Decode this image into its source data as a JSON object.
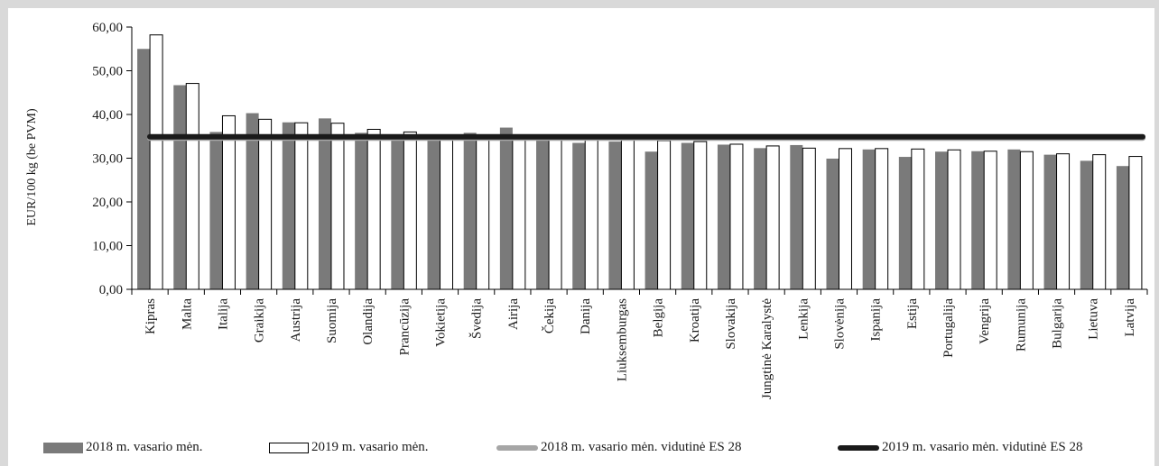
{
  "chart_data": {
    "type": "bar",
    "ylabel": "EUR/100 kg (be PVM)",
    "ylim": [
      0,
      60
    ],
    "ytick_labels": [
      "0,00",
      "10,00",
      "20,00",
      "30,00",
      "40,00",
      "50,00",
      "60,00"
    ],
    "yticks": [
      0,
      10,
      20,
      30,
      40,
      50,
      60
    ],
    "categories": [
      "Kipras",
      "Malta",
      "Italija",
      "Graikija",
      "Austrija",
      "Suomija",
      "Olandija",
      "Prancūzija",
      "Vokietija",
      "Švedija",
      "Airija",
      "Čekija",
      "Danija",
      "Liuksemburgas",
      "Belgija",
      "Kroatija",
      "Slovakija",
      "Jungtinė Karalystė",
      "Lenkija",
      "Slovėnija",
      "Ispanija",
      "Estija",
      "Portugalija",
      "Vengrija",
      "Rumunija",
      "Bulgarija",
      "Lietuva",
      "Latvija"
    ],
    "series": [
      {
        "name": "2018 m. vasario mėn.",
        "color": "#7a7a7a",
        "values": [
          55.0,
          46.7,
          36.0,
          40.3,
          38.2,
          39.1,
          35.8,
          35.4,
          34.5,
          35.8,
          37.0,
          34.6,
          33.5,
          33.8,
          31.5,
          33.5,
          33.1,
          32.3,
          33.0,
          29.9,
          32.0,
          30.3,
          31.5,
          31.6,
          32.0,
          30.8,
          29.4,
          28.2
        ]
      },
      {
        "name": "2019 m. vasario mėn.",
        "color": "#ffffff",
        "values": [
          58.2,
          47.1,
          39.7,
          38.9,
          38.1,
          38.0,
          36.6,
          36.0,
          35.3,
          35.2,
          35.0,
          34.9,
          34.4,
          34.2,
          34.0,
          33.8,
          33.2,
          32.8,
          32.3,
          32.2,
          32.2,
          32.1,
          31.9,
          31.6,
          31.5,
          31.0,
          30.8,
          30.4
        ]
      }
    ],
    "reference_lines": [
      {
        "name": "2018 m. vasario mėn. vidutinė ES 28",
        "value": 34.6,
        "color": "#a6a6a6"
      },
      {
        "name": "2019 m. vasario mėn. vidutinė ES 28",
        "value": 34.9,
        "color": "#1a1a1a"
      }
    ],
    "legend_position": "bottom",
    "grid": false
  }
}
